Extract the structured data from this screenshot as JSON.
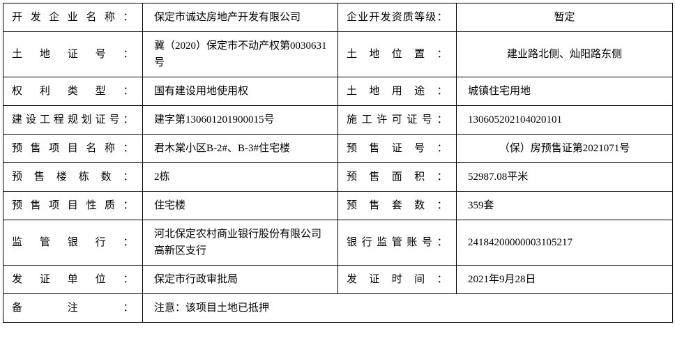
{
  "rows": [
    {
      "l1": "开发企业名称：",
      "v1": "保定市诚达房地产开发有限公司",
      "l2": "企业开发资质等级：",
      "v2": "暂定",
      "v2align": "center"
    },
    {
      "l1": "土地证号：",
      "v1": "冀（2020）保定市不动产权第0030631号",
      "l2": "土地位置：",
      "v2": "建业路北侧、灿阳路东侧",
      "v2align": "center"
    },
    {
      "l1": "权利类型：",
      "v1": "国有建设用地使用权",
      "l2": "土地用途：",
      "v2": "城镇住宅用地",
      "v2align": "left"
    },
    {
      "l1": "建设工程规划证号：",
      "v1": "建字第130601201900015号",
      "l2": "施工许可证号：",
      "v2": "130605202104020101",
      "v2align": "left"
    },
    {
      "l1": "预售项目名称：",
      "v1": "君木棠小区B-2#、B-3#住宅楼",
      "l2": "预售证号：",
      "v2": "（保）房预售证第2021071号",
      "v2align": "center"
    },
    {
      "l1": "预售楼栋数：",
      "v1": "2栋",
      "l2": "预售面积：",
      "v2": "52987.08平米",
      "v2align": "left"
    },
    {
      "l1": "预售项目性质：",
      "v1": "住宅楼",
      "l2": "预售套数：",
      "v2": "359套",
      "v2align": "left"
    },
    {
      "l1": "监管银行：",
      "v1": "河北保定农村商业银行股份有限公司高新区支行",
      "l2": "银行监管账号：",
      "v2": "24184200000003105217",
      "v2align": "left"
    },
    {
      "l1": "发证单位：",
      "v1": "保定市行政审批局",
      "l2": "发证时间：",
      "v2": "2021年9月28日",
      "v2align": "left"
    }
  ],
  "footer": {
    "label": "备注：",
    "value": "注意：该项目土地已抵押"
  }
}
